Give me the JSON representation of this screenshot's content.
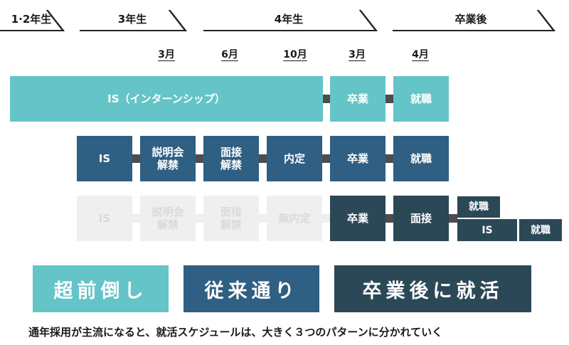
{
  "phases": {
    "y12": "1·2年生",
    "y3": "3年生",
    "y4": "4年生",
    "after": "卒業後"
  },
  "months": [
    "3月",
    "6月",
    "10月",
    "3月",
    "4月"
  ],
  "row1": {
    "is": "IS（インターンシップ）",
    "grad": "卒業",
    "job": "就職"
  },
  "row2": {
    "is": "IS",
    "info": "説明会\n解禁",
    "interview": "面接\n解禁",
    "offer": "内定",
    "grad": "卒業",
    "job": "就職"
  },
  "row3": {
    "is": "IS",
    "info": "説明会\n解禁",
    "interview": "面接\n解禁",
    "nooffer": "無内定",
    "grad": "卒業",
    "interview2": "面接",
    "job": "就職",
    "is2": "IS",
    "job2": "就職"
  },
  "labels": {
    "early": "超前倒し",
    "conventional": "従来通り",
    "post_grad": "卒業後に就活"
  },
  "caption": "通年採用が主流になると、就活スケジュールは、大きく３つのパターンに分かれていく",
  "colors": {
    "light": "#65c4c8",
    "mid": "#2f5f82",
    "dark": "#2b4857"
  }
}
